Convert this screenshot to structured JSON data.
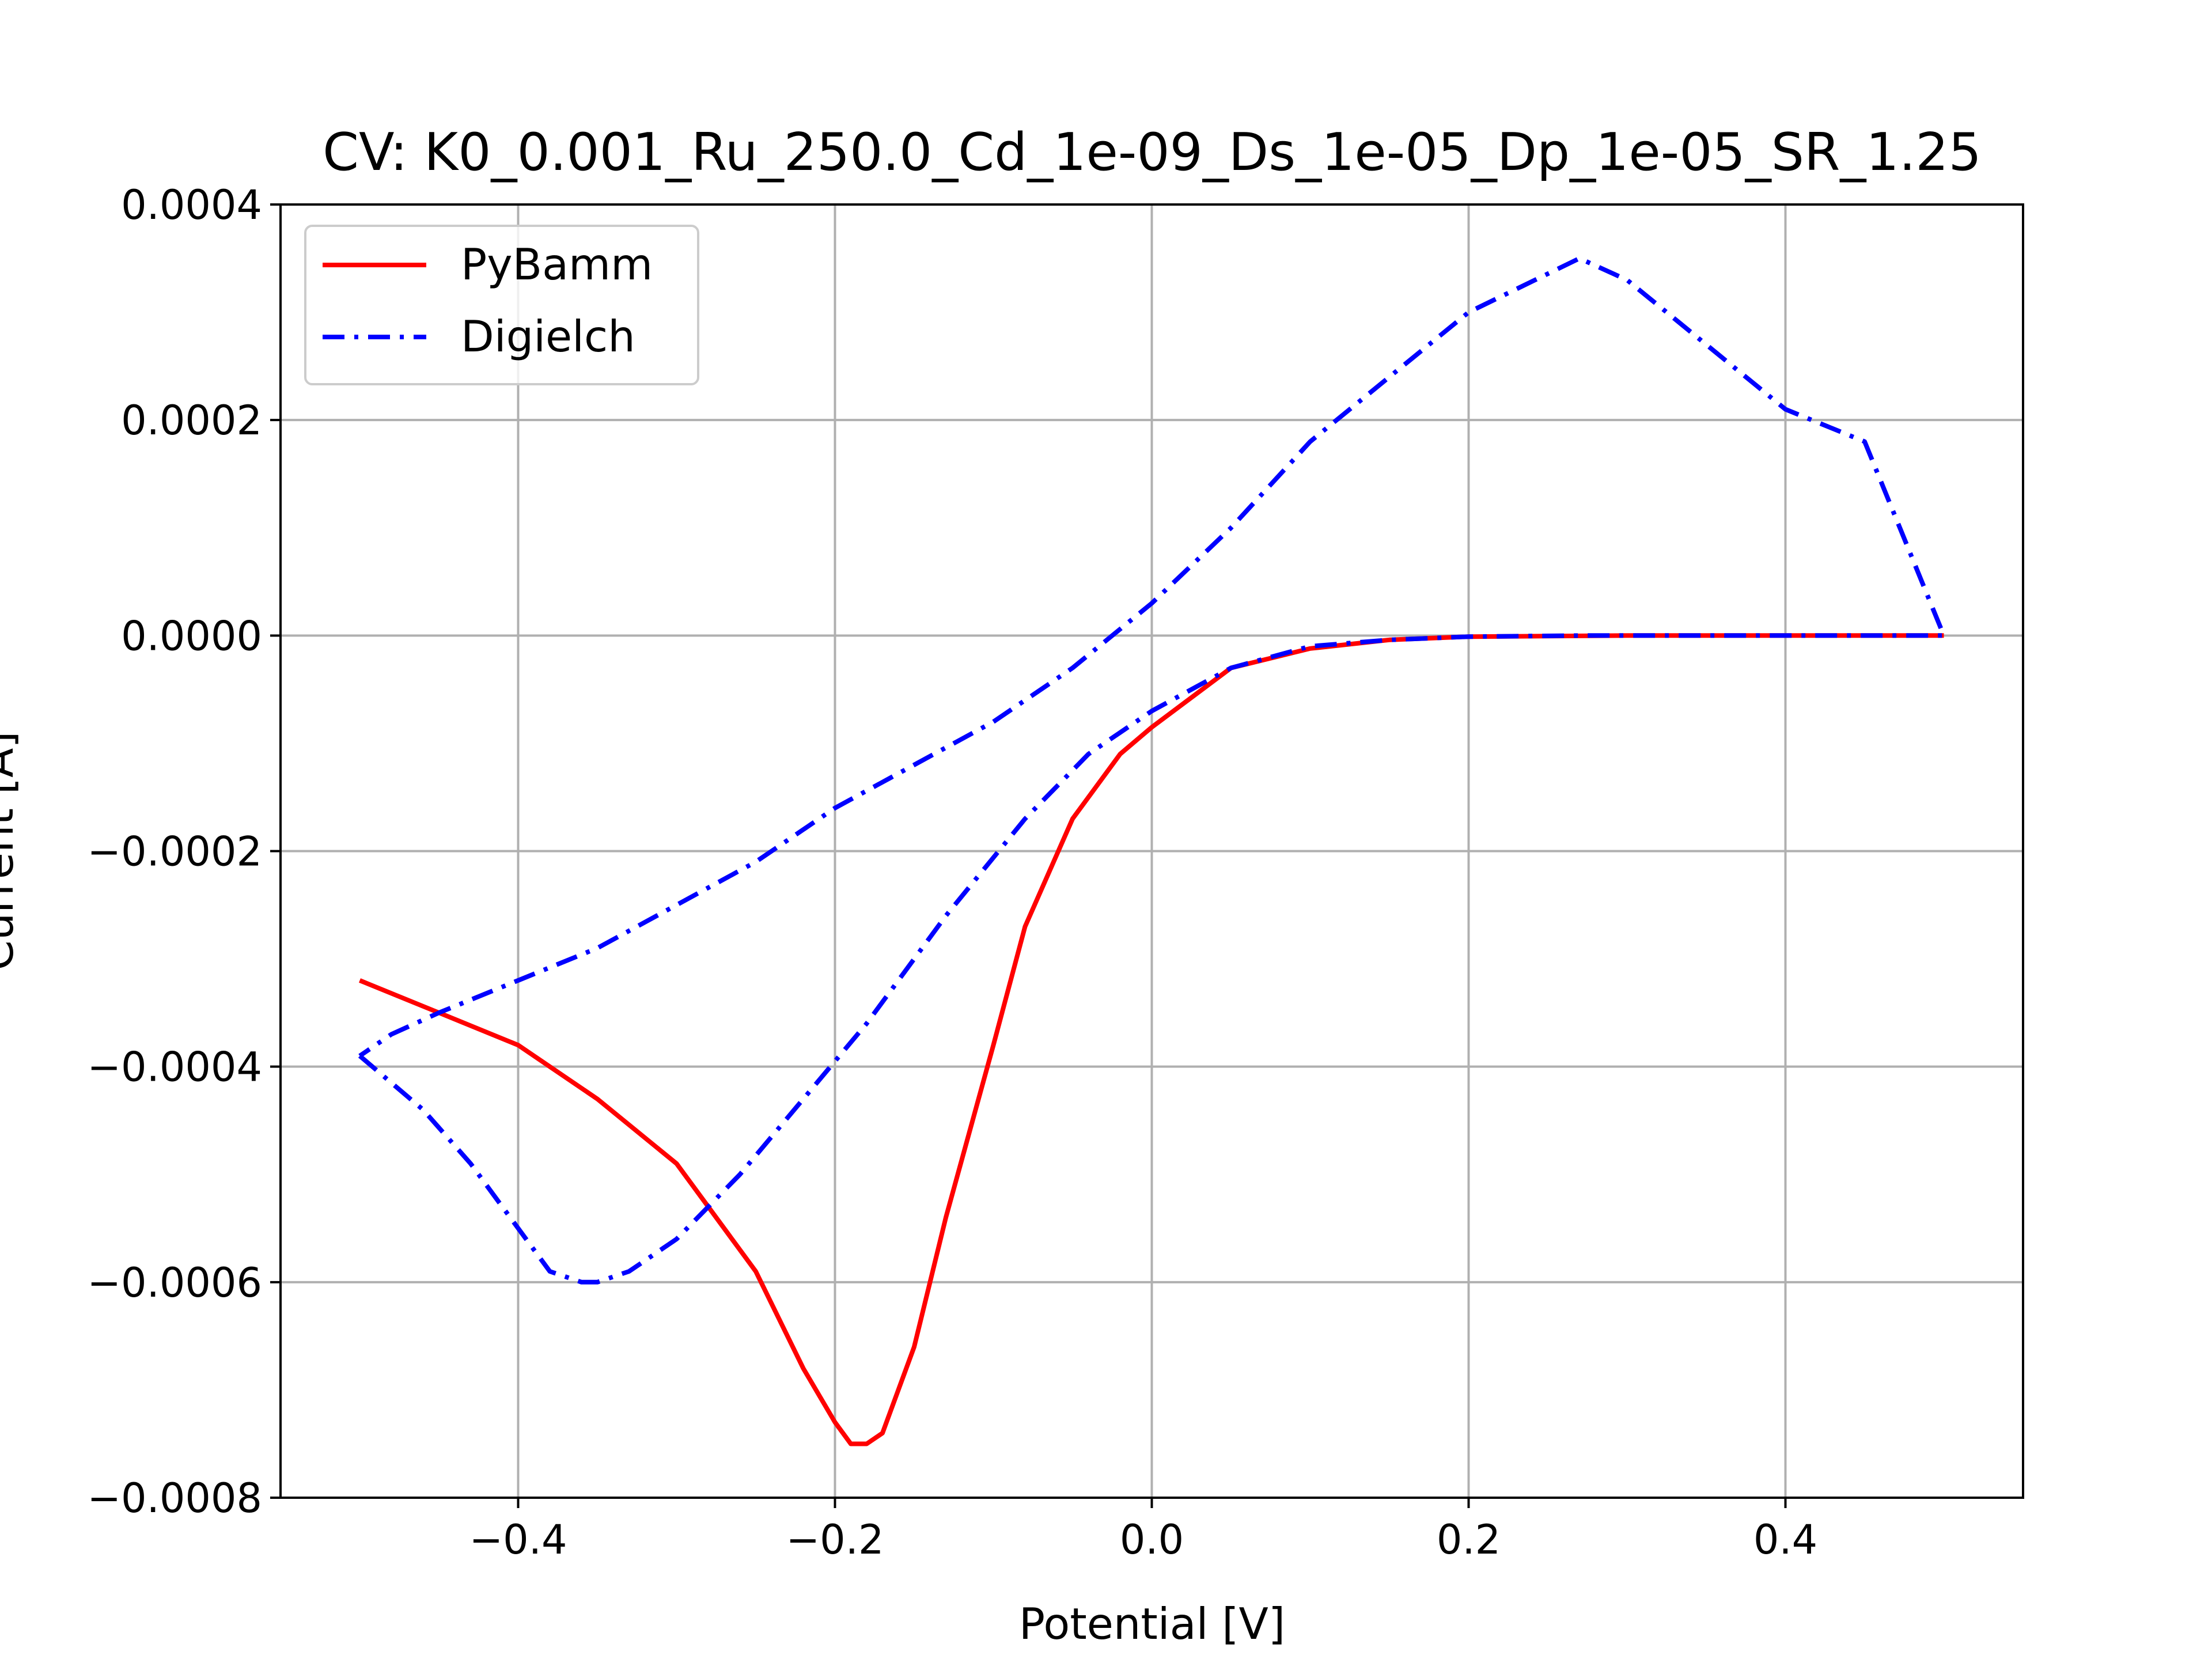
{
  "chart_data": {
    "type": "line",
    "title": "CV: K0_0.001_Ru_250.0_Cd_1e-09_Ds_1e-05_Dp_1e-05_SR_1.25",
    "xlabel": "Potential [V]",
    "ylabel": "Current [A]",
    "xlim": [
      -0.55,
      0.55
    ],
    "ylim": [
      -0.0008,
      0.0004
    ],
    "xticks": [
      -0.4,
      -0.2,
      0.0,
      0.2,
      0.4
    ],
    "xtick_labels": [
      "−0.4",
      "−0.2",
      "0.0",
      "0.2",
      "0.4"
    ],
    "yticks": [
      -0.0008,
      -0.0006,
      -0.0004,
      -0.0002,
      0.0,
      0.0002,
      0.0004
    ],
    "ytick_labels": [
      "−0.0008",
      "−0.0006",
      "−0.0004",
      "−0.0002",
      "0.0000",
      "0.0002",
      "0.0004"
    ],
    "grid": true,
    "legend_position": "upper-left",
    "series": [
      {
        "name": "PyBamm",
        "color": "#ff0000",
        "linestyle": "solid",
        "x": [
          -0.5,
          -0.45,
          -0.4,
          -0.35,
          -0.3,
          -0.25,
          -0.22,
          -0.2,
          -0.19,
          -0.18,
          -0.17,
          -0.15,
          -0.13,
          -0.1,
          -0.08,
          -0.05,
          -0.02,
          0.0,
          0.05,
          0.1,
          0.15,
          0.2,
          0.3,
          0.4,
          0.5
        ],
        "y": [
          -0.00032,
          -0.00035,
          -0.00038,
          -0.00043,
          -0.00049,
          -0.00059,
          -0.00068,
          -0.00073,
          -0.00075,
          -0.00075,
          -0.00074,
          -0.00066,
          -0.00054,
          -0.00038,
          -0.00027,
          -0.00017,
          -0.00011,
          -8.5e-05,
          -3e-05,
          -1.2e-05,
          -4e-06,
          -1e-06,
          0.0,
          0.0,
          0.0
        ]
      },
      {
        "name": "Digielch",
        "color": "#0000ff",
        "linestyle": "dashdot",
        "x": [
          -0.5,
          -0.46,
          -0.43,
          -0.4,
          -0.38,
          -0.36,
          -0.35,
          -0.33,
          -0.3,
          -0.26,
          -0.22,
          -0.18,
          -0.13,
          -0.08,
          -0.04,
          0.0,
          0.05,
          0.1,
          0.15,
          0.2,
          0.27,
          0.3,
          0.33,
          0.37,
          0.4,
          0.45,
          0.5,
          0.45,
          0.4,
          0.35,
          0.3,
          0.27,
          0.2,
          0.15,
          0.1,
          0.05,
          0.0,
          -0.05,
          -0.1,
          -0.15,
          -0.2,
          -0.25,
          -0.3,
          -0.35,
          -0.4,
          -0.45,
          -0.48,
          -0.5
        ],
        "y": [
          -0.00039,
          -0.00044,
          -0.00049,
          -0.00055,
          -0.00059,
          -0.0006,
          -0.0006,
          -0.00059,
          -0.00056,
          -0.0005,
          -0.00043,
          -0.00036,
          -0.00026,
          -0.00017,
          -0.00011,
          -7e-05,
          -3e-05,
          -1e-05,
          -4e-06,
          -1e-06,
          0.0,
          0.0,
          0.0,
          0.0,
          0.0,
          0.0,
          0.0,
          0.00018,
          0.00021,
          0.00027,
          0.00033,
          0.00035,
          0.0003,
          0.00024,
          0.00018,
          0.0001,
          3e-05,
          -3e-05,
          -8e-05,
          -0.00012,
          -0.00016,
          -0.00021,
          -0.00025,
          -0.00029,
          -0.00032,
          -0.00035,
          -0.00037,
          -0.00039
        ]
      }
    ]
  }
}
